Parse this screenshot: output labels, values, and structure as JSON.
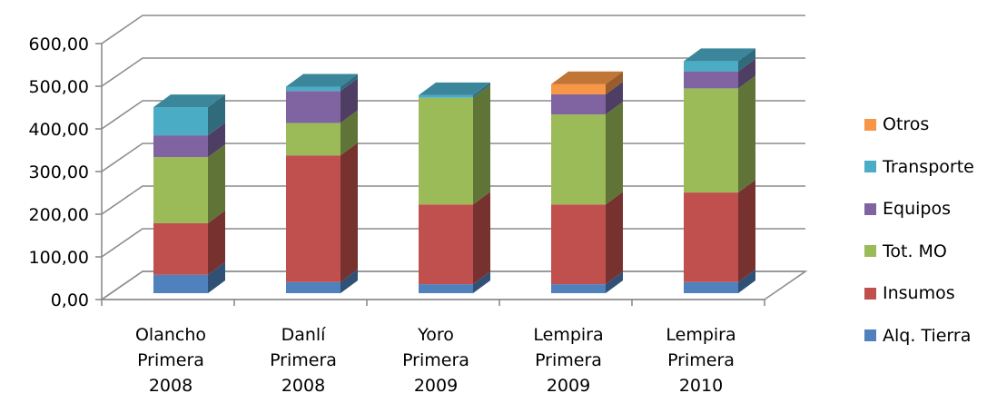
{
  "chart_data": {
    "type": "bar",
    "stacked": true,
    "three_d": true,
    "categories": [
      [
        "Olancho",
        "Primera",
        "2008"
      ],
      [
        "Danlí",
        "Primera",
        "2008"
      ],
      [
        "Yoro",
        "Primera",
        "2009"
      ],
      [
        "Lempira",
        "Primera",
        "2009"
      ],
      [
        "Lempira",
        "Primera",
        "2010"
      ]
    ],
    "series": [
      {
        "name": "Alq. Tierra",
        "color": "#4f81bd",
        "values": [
          43,
          26,
          21,
          21,
          26
        ]
      },
      {
        "name": "Insumos",
        "color": "#c0504d",
        "values": [
          121,
          297,
          187,
          187,
          210
        ]
      },
      {
        "name": "Tot. MO",
        "color": "#9bbb59",
        "values": [
          155,
          76,
          250,
          211,
          244
        ]
      },
      {
        "name": "Equipos",
        "color": "#8064a2",
        "values": [
          51,
          75,
          0,
          47,
          40
        ]
      },
      {
        "name": "Transporte",
        "color": "#4bacc6",
        "values": [
          66,
          10,
          6,
          0,
          24
        ]
      },
      {
        "name": "Otros",
        "color": "#f79646",
        "values": [
          0,
          0,
          0,
          24,
          0
        ]
      }
    ],
    "yticks": [
      "0,00",
      "100,00",
      "200,00",
      "300,00",
      "400,00",
      "500,00",
      "600,00"
    ],
    "ylim": [
      0,
      600
    ],
    "grid": true,
    "legend_position": "right"
  }
}
